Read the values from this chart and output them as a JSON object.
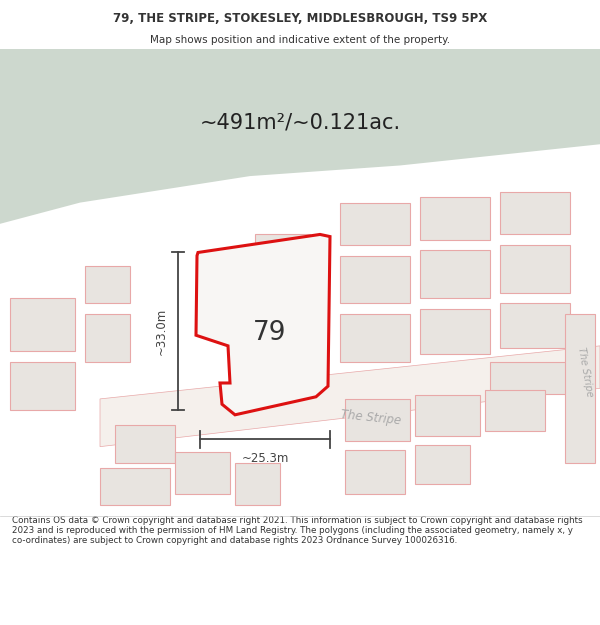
{
  "title_line1": "79, THE STRIPE, STOKESLEY, MIDDLESBROUGH, TS9 5PX",
  "title_line2": "Map shows position and indicative extent of the property.",
  "area_text": "~491m²/~0.121ac.",
  "label_79": "79",
  "label_width": "~25.3m",
  "label_height": "~33.0m",
  "label_street1": "The Stripe",
  "label_street2": "The Stripe",
  "footer_text": "Contains OS data © Crown copyright and database right 2021. This information is subject to Crown copyright and database rights 2023 and is reproduced with the permission of HM Land Registry. The polygons (including the associated geometry, namely x, y co-ordinates) are subject to Crown copyright and database rights 2023 Ordnance Survey 100026316.",
  "bg_color": "#ffffff",
  "map_bg": "#ffffff",
  "green_area_color": "#cdd8ce",
  "plot_outline_color": "#dd1111",
  "building_fill": "#e8e4e0",
  "building_line": "#e8a8a8",
  "road_line": "#e8a8a8",
  "dim_line_color": "#444444",
  "title_color": "#333333",
  "footer_color": "#333333",
  "street_label_color": "#aaaaaa"
}
